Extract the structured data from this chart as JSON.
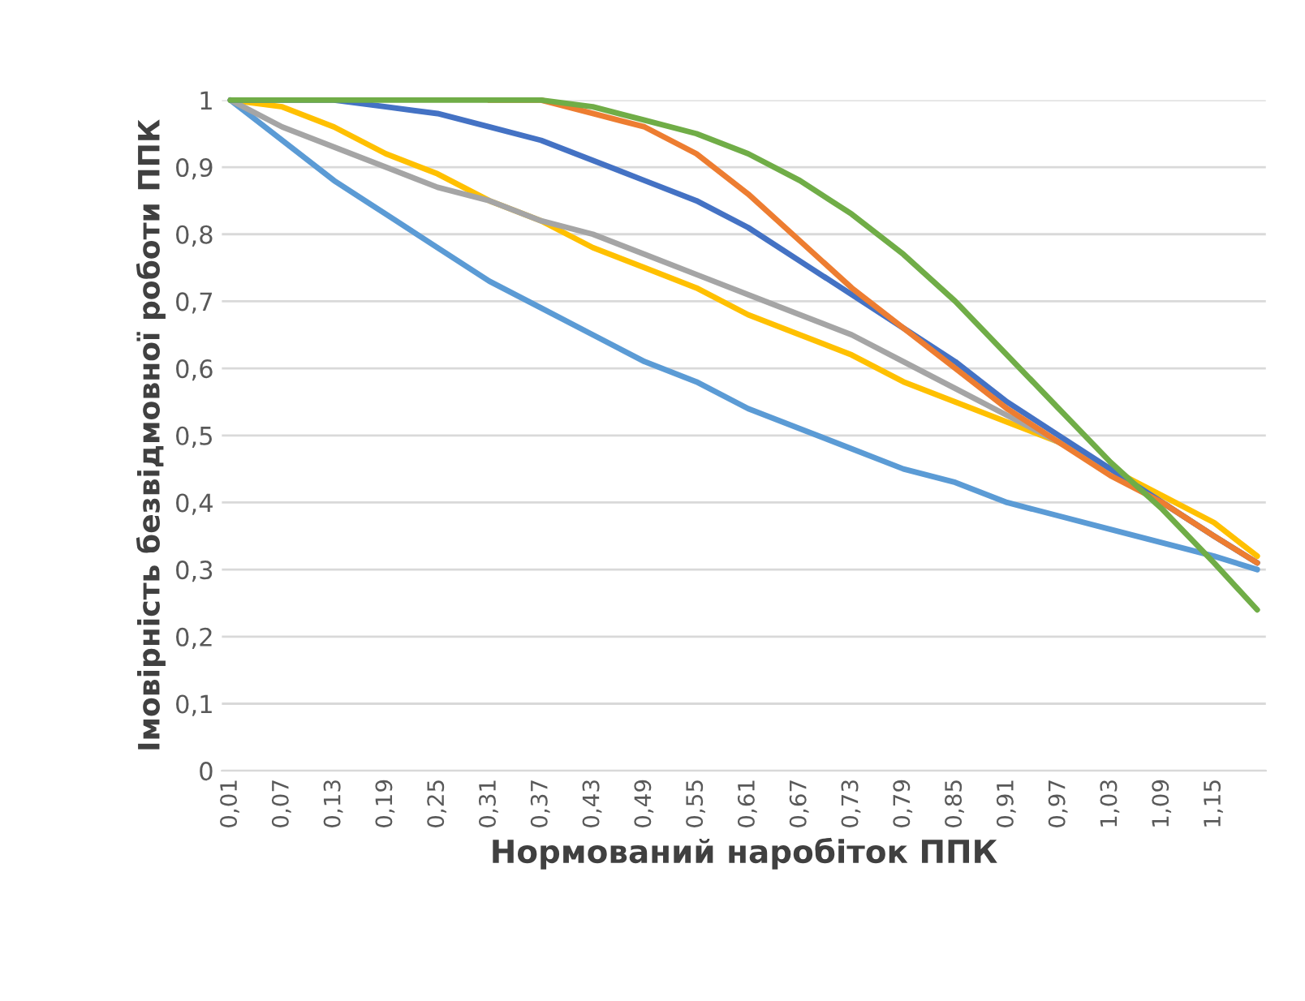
{
  "chart_data": {
    "type": "line",
    "xlabel": "Нормований наробіток ППК",
    "ylabel": "Імовірність безвідмовної роботи ППК",
    "x": [
      0.01,
      0.07,
      0.13,
      0.19,
      0.25,
      0.31,
      0.37,
      0.43,
      0.49,
      0.55,
      0.61,
      0.67,
      0.73,
      0.79,
      0.85,
      0.91,
      0.97,
      1.03,
      1.09,
      1.15,
      1.2
    ],
    "series": [
      {
        "color": "#5b9bd5",
        "values": [
          1.0,
          0.94,
          0.88,
          0.83,
          0.78,
          0.73,
          0.69,
          0.65,
          0.61,
          0.58,
          0.54,
          0.51,
          0.48,
          0.45,
          0.43,
          0.4,
          0.38,
          0.36,
          0.34,
          0.32,
          0.3
        ]
      },
      {
        "color": "#ffc000",
        "values": [
          1.0,
          0.99,
          0.96,
          0.92,
          0.89,
          0.85,
          0.82,
          0.78,
          0.75,
          0.72,
          0.68,
          0.65,
          0.62,
          0.58,
          0.55,
          0.52,
          0.49,
          0.45,
          0.41,
          0.37,
          0.32
        ]
      },
      {
        "color": "#a5a5a5",
        "values": [
          1.0,
          0.96,
          0.93,
          0.9,
          0.87,
          0.85,
          0.82,
          0.8,
          0.77,
          0.74,
          0.71,
          0.68,
          0.65,
          0.61,
          0.57,
          0.53,
          0.49,
          0.45,
          0.4,
          0.35,
          0.31
        ]
      },
      {
        "color": "#4472c4",
        "values": [
          1.0,
          1.0,
          1.0,
          0.99,
          0.98,
          0.96,
          0.94,
          0.91,
          0.88,
          0.85,
          0.81,
          0.76,
          0.71,
          0.66,
          0.61,
          0.55,
          0.5,
          0.45,
          0.4,
          0.35,
          0.31
        ]
      },
      {
        "color": "#ed7d31",
        "values": [
          null,
          null,
          null,
          null,
          null,
          1.0,
          1.0,
          0.98,
          0.96,
          0.92,
          0.86,
          0.79,
          0.72,
          0.66,
          0.6,
          0.54,
          0.49,
          0.44,
          0.4,
          0.35,
          0.31
        ]
      },
      {
        "color": "#70ad47",
        "values": [
          1.0,
          1.0,
          1.0,
          1.0,
          1.0,
          1.0,
          1.0,
          0.99,
          0.97,
          0.95,
          0.92,
          0.88,
          0.83,
          0.77,
          0.7,
          0.62,
          0.54,
          0.46,
          0.39,
          0.31,
          0.24
        ]
      }
    ],
    "xlim": [
      0.0,
      1.21
    ],
    "xticks": [
      {
        "value": 0.01,
        "label": "0,01"
      },
      {
        "value": 0.07,
        "label": "0,07"
      },
      {
        "value": 0.13,
        "label": "0,13"
      },
      {
        "value": 0.19,
        "label": "0,19"
      },
      {
        "value": 0.25,
        "label": "0,25"
      },
      {
        "value": 0.31,
        "label": "0,31"
      },
      {
        "value": 0.37,
        "label": "0,37"
      },
      {
        "value": 0.43,
        "label": "0,43"
      },
      {
        "value": 0.49,
        "label": "0,49"
      },
      {
        "value": 0.55,
        "label": "0,55"
      },
      {
        "value": 0.61,
        "label": "0,61"
      },
      {
        "value": 0.67,
        "label": "0,67"
      },
      {
        "value": 0.73,
        "label": "0,73"
      },
      {
        "value": 0.79,
        "label": "0,79"
      },
      {
        "value": 0.85,
        "label": "0,85"
      },
      {
        "value": 0.91,
        "label": "0,91"
      },
      {
        "value": 0.97,
        "label": "0,97"
      },
      {
        "value": 1.03,
        "label": "1,03"
      },
      {
        "value": 1.09,
        "label": "1,09"
      },
      {
        "value": 1.15,
        "label": "1,15"
      }
    ],
    "ylim": [
      0,
      1
    ],
    "yticks": [
      0,
      {
        "value": 0.1,
        "label": "0,1"
      },
      {
        "value": 0.2,
        "label": "0,2"
      },
      {
        "value": 0.3,
        "label": "0,3"
      },
      {
        "value": 0.4,
        "label": "0,4"
      },
      {
        "value": 0.5,
        "label": "0,5"
      },
      {
        "value": 0.6,
        "label": "0,6"
      },
      {
        "value": 0.7,
        "label": "0,7"
      },
      {
        "value": 0.8,
        "label": "0,8"
      },
      {
        "value": 0.9,
        "label": "0,9"
      },
      1
    ],
    "grid": "y",
    "legend": false,
    "marker": "none",
    "line_style": "solid"
  }
}
